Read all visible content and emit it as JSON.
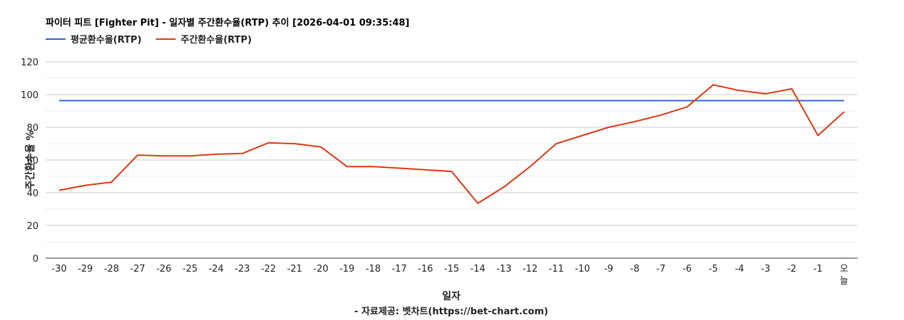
{
  "chart_data": {
    "type": "line",
    "title": "파이터 피트 [Fighter Pit] - 일자별 주간환수율(RTP) 추이 [2026-04-01 09:35:48]",
    "xlabel": "일자",
    "ylabel": "주간환수율 %",
    "footer": "- 자료제공: 벳차트(https://bet-chart.com)",
    "ylim": [
      0,
      120
    ],
    "yticks": [
      0,
      20,
      40,
      60,
      80,
      100,
      120
    ],
    "grid": true,
    "legend_position": "top-left",
    "categories": [
      "-30",
      "-29",
      "-28",
      "-27",
      "-26",
      "-25",
      "-24",
      "-23",
      "-22",
      "-21",
      "-20",
      "-19",
      "-18",
      "-17",
      "-16",
      "-15",
      "-14",
      "-13",
      "-12",
      "-11",
      "-10",
      "-9",
      "-8",
      "-7",
      "-6",
      "-5",
      "-4",
      "-3",
      "-2",
      "-1",
      "오늘"
    ],
    "series": [
      {
        "name": "평균환수율(RTP)",
        "color": "#3366cc",
        "values": [
          96.3,
          96.3,
          96.3,
          96.3,
          96.3,
          96.3,
          96.3,
          96.3,
          96.3,
          96.3,
          96.3,
          96.3,
          96.3,
          96.3,
          96.3,
          96.3,
          96.3,
          96.3,
          96.3,
          96.3,
          96.3,
          96.3,
          96.3,
          96.3,
          96.3,
          96.3,
          96.3,
          96.3,
          96.3,
          96.3,
          96.3
        ]
      },
      {
        "name": "주간환수율(RTP)",
        "color": "#dc3912",
        "values": [
          41.5,
          44.5,
          46.5,
          63,
          62.5,
          62.5,
          63.5,
          64,
          70.5,
          70,
          68,
          56,
          56,
          55,
          54,
          53,
          33.5,
          43.5,
          56,
          70,
          75,
          80,
          83.5,
          87.5,
          92.5,
          106,
          102.5,
          100.5,
          103.5,
          75,
          89.5
        ]
      }
    ]
  }
}
